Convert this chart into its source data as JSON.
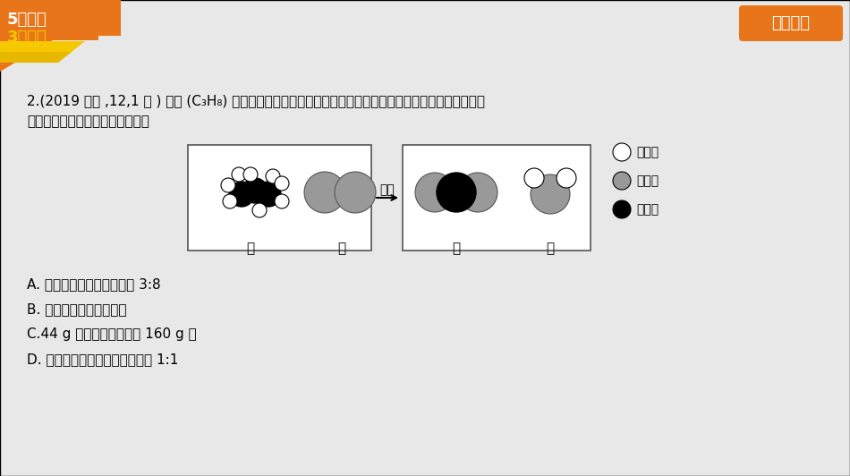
{
  "badge_text": "栏目索引",
  "question_line1": "2.(2019 北京 ,12,1 分 ) 丙烷 (C₃H₈) 是液化石油气的主要成分之一，燃烧前后分子种类变化的微观示意图如",
  "question_line2": "下。下列说法正确的是　（　　）",
  "arrow_text": "点燃",
  "label_jia": "甲",
  "label_yi": "乙",
  "label_bing": "丙",
  "label_ding": "丁",
  "legend_items": [
    "氢原子",
    "氧原子",
    "碳原子"
  ],
  "options": [
    "A. 甲中碳、氢元素质量比为 3:8",
    "B. 乙和丙的元素组成相同",
    "C.44 g 甲完全燃烧至少需 160 g 乙",
    "D. 生成的丙与丁的分子个数比为 1:1"
  ],
  "orange_color": "#E8751A",
  "gray_atom": "#999999",
  "bg_color": "#E8E8E8"
}
